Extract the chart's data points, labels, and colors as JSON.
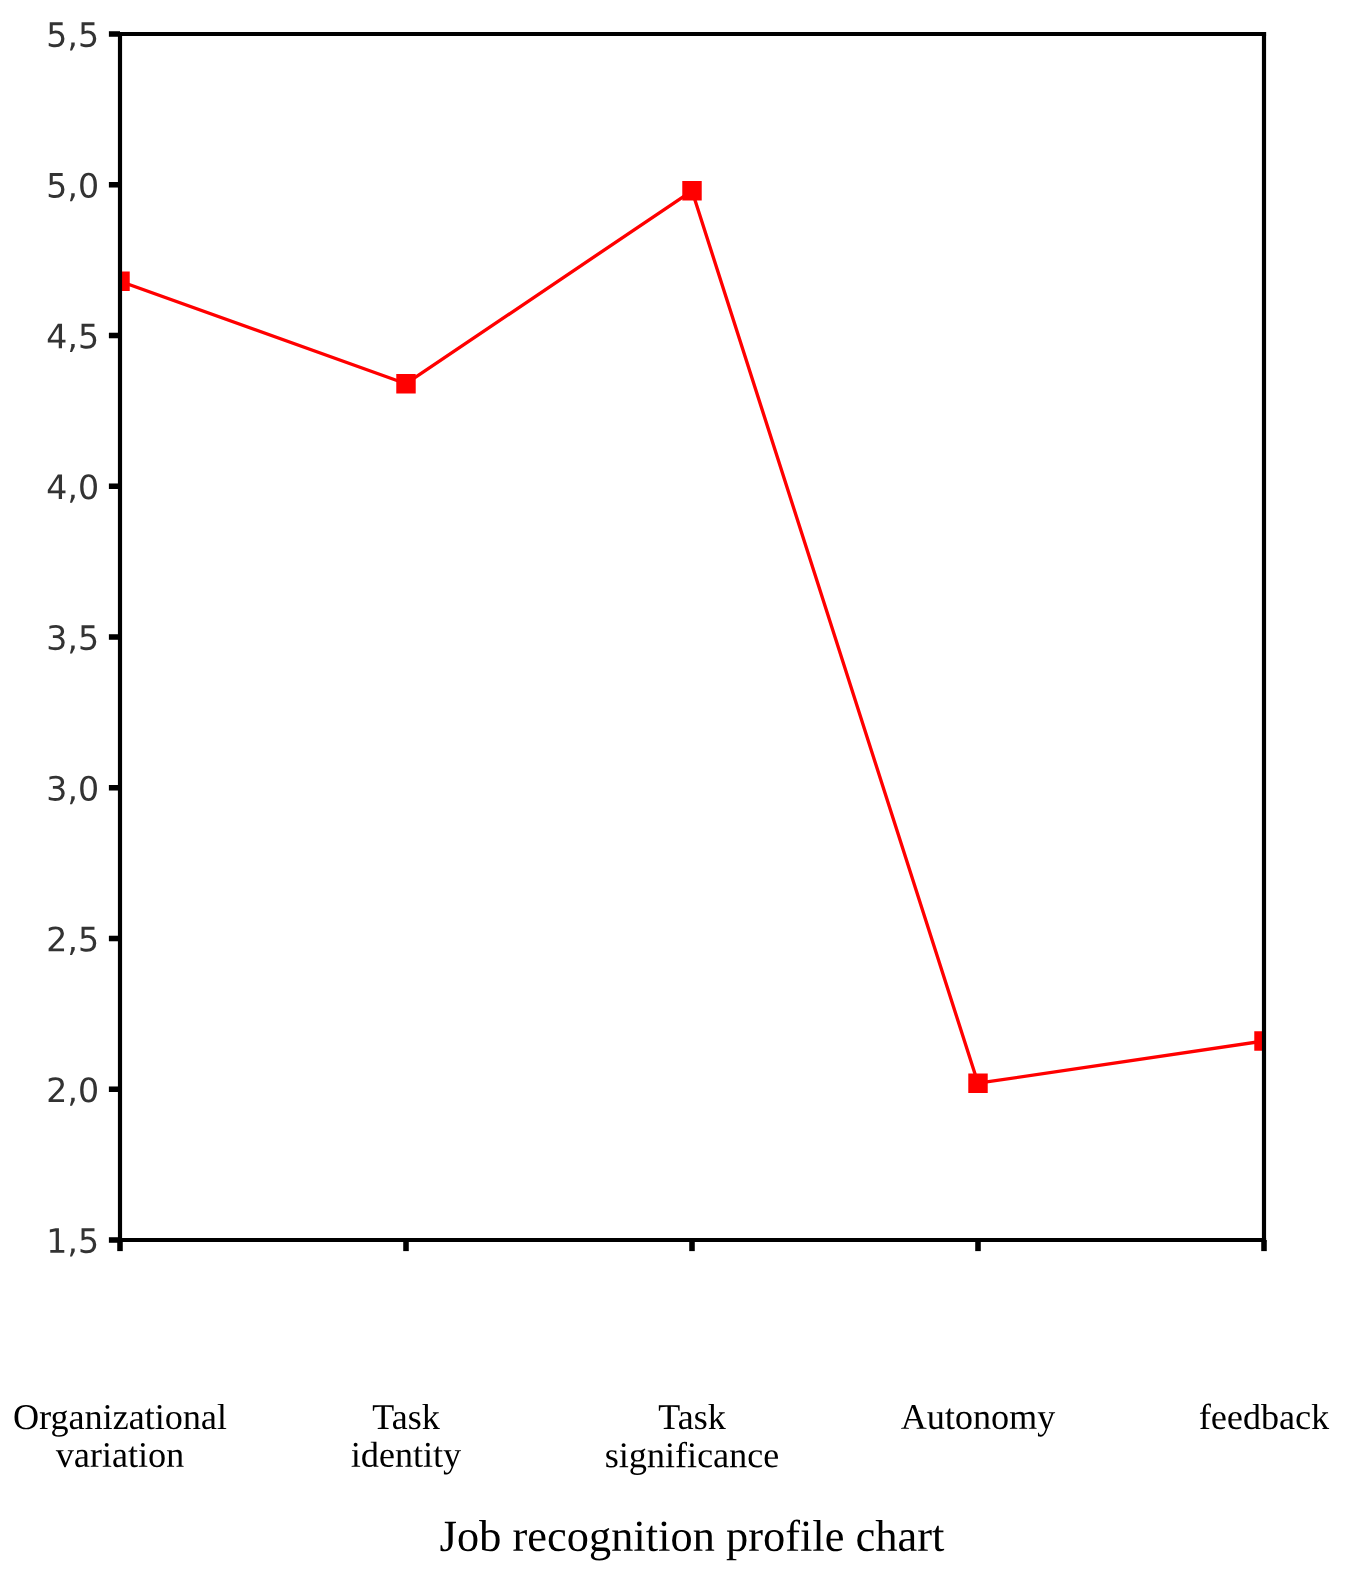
{
  "chart_data": {
    "type": "line",
    "title": "Job recognition profile chart",
    "categories": [
      "Organizational\nvariation",
      "Task\nidentity",
      "Task\nsignificance",
      "Autonomy",
      "feedback"
    ],
    "series": [
      {
        "color": "#ff0000",
        "values": [
          4.68,
          4.34,
          4.98,
          2.02,
          2.16
        ]
      }
    ],
    "ylim": [
      1.5,
      5.5
    ],
    "yticks": [
      {
        "value": 1.5,
        "label": "1,5"
      },
      {
        "value": 2.0,
        "label": "2,0"
      },
      {
        "value": 2.5,
        "label": "2,5"
      },
      {
        "value": 3.0,
        "label": "3,0"
      },
      {
        "value": 3.5,
        "label": "3,5"
      },
      {
        "value": 4.0,
        "label": "4,0"
      },
      {
        "value": 4.5,
        "label": "4,5"
      },
      {
        "value": 5.0,
        "label": "5,0"
      },
      {
        "value": 5.5,
        "label": "5,5"
      }
    ],
    "grid": false,
    "legend": false,
    "marker": "square",
    "line_style": "solid"
  }
}
